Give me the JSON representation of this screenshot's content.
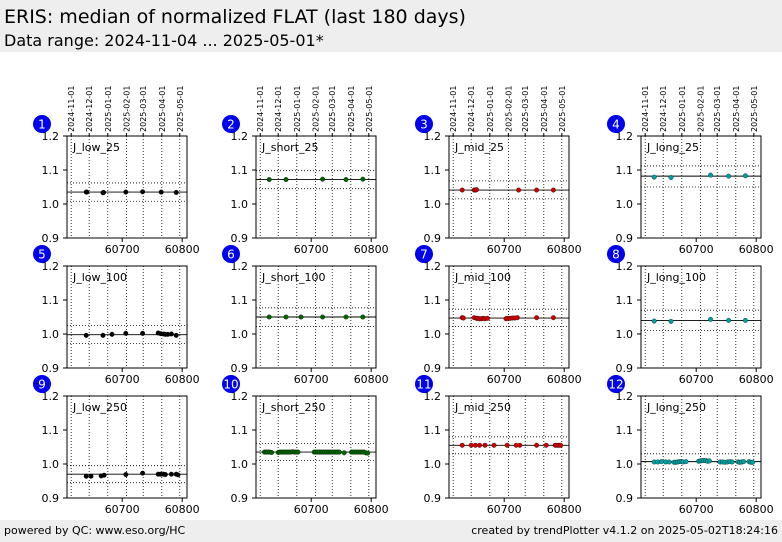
{
  "header": {
    "title": "ERIS: median of normalized FLAT (last 180 days)",
    "subtitle": "Data range: 2024-11-04 ... 2025-05-01*"
  },
  "footer": {
    "left": "powered by QC: www.eso.org/HC",
    "right": "created by trendPlotter v4.1.2 on 2025-05-02T18:24:16"
  },
  "colors": {
    "badge": "#0000ee",
    "low": "#000000",
    "short": "#006400",
    "mid": "#cc0000",
    "long": "#00a0a0",
    "header_bg": "#eeeeee"
  },
  "chart_data": {
    "type": "scatter",
    "date_ticks": [
      "2024-11-01",
      "2024-12-01",
      "2025-01-01",
      "2025-02-01",
      "2025-03-01",
      "2025-04-01",
      "2025-05-01"
    ],
    "date_tick_mjd": [
      60615,
      60645,
      60676,
      60707,
      60735,
      60766,
      60796
    ],
    "xlim": [
      60608,
      60808
    ],
    "x_ticks": [
      60700,
      60800
    ],
    "ylim": [
      0.9,
      1.2
    ],
    "y_ticks": [
      "0.9",
      "1.0",
      "1.1",
      "1.2"
    ],
    "panels": [
      {
        "id": "1",
        "label": "J_low_25",
        "color": "low",
        "median": 1.035,
        "band": [
          1.008,
          1.062
        ],
        "x": [
          60640,
          60641,
          60668,
          60669,
          60706,
          60734,
          60765,
          60790
        ],
        "y": [
          1.035,
          1.035,
          1.033,
          1.034,
          1.035,
          1.036,
          1.035,
          1.034
        ]
      },
      {
        "id": "2",
        "label": "J_short_25",
        "color": "short",
        "median": 1.072,
        "band": [
          1.045,
          1.098
        ],
        "x": [
          60630,
          60658,
          60719,
          60758,
          60786
        ],
        "y": [
          1.072,
          1.072,
          1.073,
          1.072,
          1.073
        ]
      },
      {
        "id": "3",
        "label": "J_mid_25",
        "color": "mid",
        "median": 1.041,
        "band": [
          1.015,
          1.068
        ],
        "x": [
          60630,
          60650,
          60652,
          60654,
          60724,
          60754,
          60782
        ],
        "y": [
          1.041,
          1.041,
          1.041,
          1.042,
          1.041,
          1.041,
          1.041
        ]
      },
      {
        "id": "4",
        "label": "J_long_25",
        "color": "long",
        "median": 1.082,
        "band": [
          1.05,
          1.112
        ],
        "x": [
          60630,
          60658,
          60724,
          60754,
          60782
        ],
        "y": [
          1.079,
          1.078,
          1.085,
          1.082,
          1.083
        ]
      },
      {
        "id": "5",
        "label": "J_low_100",
        "color": "low",
        "median": 0.998,
        "band": [
          0.972,
          1.025
        ],
        "x": [
          60640,
          60668,
          60683,
          60706,
          60734,
          60760,
          60764,
          60769,
          60772,
          60776,
          60782,
          60790
        ],
        "y": [
          0.996,
          0.996,
          0.999,
          1.002,
          1.002,
          1.003,
          1.001,
          1.0,
          0.999,
          0.999,
          1.0,
          0.996
        ]
      },
      {
        "id": "6",
        "label": "J_short_100",
        "color": "short",
        "median": 1.05,
        "band": [
          1.022,
          1.077
        ],
        "x": [
          60630,
          60658,
          60683,
          60719,
          60758,
          60786
        ],
        "y": [
          1.05,
          1.05,
          1.05,
          1.05,
          1.05,
          1.05
        ]
      },
      {
        "id": "7",
        "label": "J_mid_100",
        "color": "mid",
        "median": 1.047,
        "band": [
          1.022,
          1.073
        ],
        "x": [
          60630,
          60632,
          60650,
          60654,
          60656,
          60659,
          60662,
          60665,
          60668,
          60672,
          60703,
          60706,
          60710,
          60714,
          60718,
          60722,
          60754,
          60782
        ],
        "y": [
          1.048,
          1.047,
          1.048,
          1.046,
          1.046,
          1.045,
          1.045,
          1.046,
          1.045,
          1.046,
          1.045,
          1.046,
          1.046,
          1.047,
          1.047,
          1.048,
          1.048,
          1.048
        ]
      },
      {
        "id": "8",
        "label": "J_long_100",
        "color": "long",
        "median": 1.04,
        "band": [
          1.01,
          1.07
        ],
        "x": [
          60630,
          60658,
          60724,
          60754,
          60782
        ],
        "y": [
          1.038,
          1.037,
          1.043,
          1.04,
          1.04
        ]
      },
      {
        "id": "9",
        "label": "J_low_250",
        "color": "low",
        "median": 0.97,
        "band": [
          0.945,
          0.995
        ],
        "x": [
          60640,
          60648,
          60665,
          60670,
          60706,
          60734,
          60760,
          60764,
          60769,
          60772,
          60782,
          60790,
          60793
        ],
        "y": [
          0.964,
          0.964,
          0.965,
          0.967,
          0.969,
          0.973,
          0.97,
          0.97,
          0.97,
          0.969,
          0.97,
          0.97,
          0.968
        ]
      },
      {
        "id": "10",
        "label": "J_short_250",
        "color": "short",
        "median": 1.035,
        "band": [
          1.01,
          1.06
        ],
        "x": [
          60622,
          60625,
          60628,
          60631,
          60634,
          60645,
          60648,
          60651,
          60654,
          60657,
          60660,
          60663,
          60666,
          60669,
          60672,
          60675,
          60678,
          60705,
          60708,
          60711,
          60714,
          60717,
          60720,
          60723,
          60726,
          60729,
          60732,
          60735,
          60738,
          60741,
          60744,
          60747,
          60755,
          60767,
          60770,
          60773,
          60776,
          60779,
          60782,
          60785,
          60788,
          60791,
          60794
        ],
        "y": [
          1.035,
          1.035,
          1.035,
          1.035,
          1.034,
          1.034,
          1.035,
          1.035,
          1.035,
          1.035,
          1.035,
          1.035,
          1.035,
          1.036,
          1.035,
          1.035,
          1.035,
          1.035,
          1.035,
          1.035,
          1.035,
          1.035,
          1.035,
          1.035,
          1.035,
          1.035,
          1.035,
          1.035,
          1.035,
          1.035,
          1.035,
          1.035,
          1.033,
          1.035,
          1.035,
          1.035,
          1.035,
          1.035,
          1.035,
          1.035,
          1.035,
          1.033,
          1.032
        ]
      },
      {
        "id": "11",
        "label": "J_mid_250",
        "color": "mid",
        "median": 1.055,
        "band": [
          1.03,
          1.08
        ],
        "x": [
          60630,
          60645,
          60652,
          60659,
          60668,
          60683,
          60705,
          60720,
          60726,
          60754,
          60770,
          60785,
          60788,
          60791,
          60794
        ],
        "y": [
          1.055,
          1.055,
          1.055,
          1.055,
          1.055,
          1.055,
          1.055,
          1.055,
          1.055,
          1.055,
          1.055,
          1.055,
          1.055,
          1.055,
          1.055
        ]
      },
      {
        "id": "12",
        "label": "J_long_250",
        "color": "long",
        "median": 1.007,
        "band": [
          0.985,
          1.03
        ],
        "x": [
          60630,
          60636,
          60642,
          60649,
          60655,
          60663,
          60666,
          60669,
          60672,
          60675,
          60678,
          60683,
          60704,
          60707,
          60710,
          60713,
          60716,
          60719,
          60722,
          60740,
          60744,
          60748,
          60752,
          60756,
          60760,
          60770,
          60773,
          60776,
          60779,
          60788,
          60791,
          60794
        ],
        "y": [
          1.006,
          1.006,
          1.007,
          1.006,
          1.006,
          1.005,
          1.005,
          1.006,
          1.007,
          1.007,
          1.006,
          1.007,
          1.008,
          1.009,
          1.01,
          1.01,
          1.01,
          1.008,
          1.009,
          1.006,
          1.006,
          1.005,
          1.006,
          1.007,
          1.006,
          1.006,
          1.005,
          1.006,
          1.007,
          1.007,
          1.005,
          1.005
        ]
      }
    ]
  }
}
